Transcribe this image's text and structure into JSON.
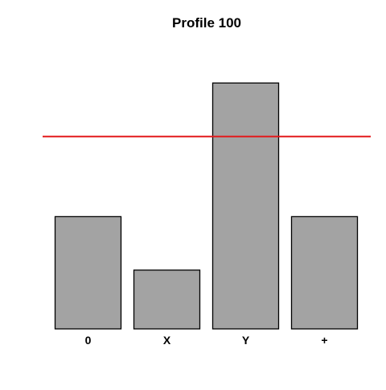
{
  "chart_data": {
    "type": "bar",
    "title": "Profile 100",
    "categories": [
      "0",
      "X",
      "Y",
      "+"
    ],
    "values": [
      0.42,
      0.22,
      0.92,
      0.42
    ],
    "ylim": [
      0,
      1.05
    ],
    "reference_line": {
      "value": 0.72,
      "color": "#e31a1c"
    },
    "bar_color": "#a3a3a3",
    "xlabel": "",
    "ylabel": "",
    "grid": false
  }
}
